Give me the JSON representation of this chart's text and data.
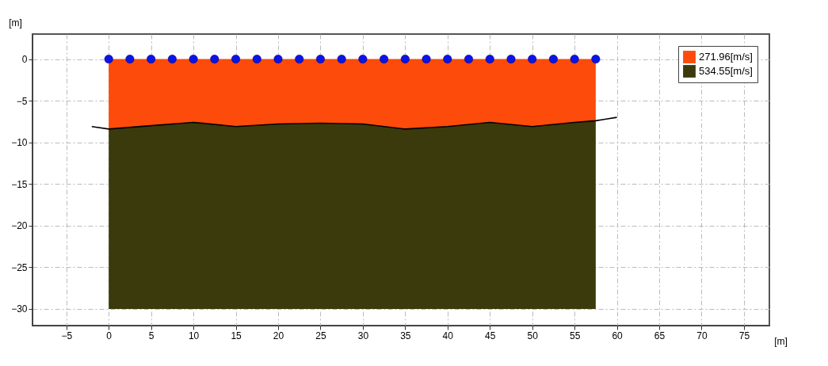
{
  "chart_data": {
    "type": "area",
    "stacked": true,
    "xlabel": "[m]",
    "ylabel": "[m]",
    "xlim": [
      -9,
      78
    ],
    "ylim": [
      -32,
      3
    ],
    "xticks": [
      -5,
      0,
      5,
      10,
      15,
      20,
      25,
      30,
      35,
      40,
      45,
      50,
      55,
      60,
      65,
      70,
      75
    ],
    "yticks": [
      -30,
      -25,
      -20,
      -15,
      -10,
      -5,
      0
    ],
    "grid": true,
    "legend": "top right",
    "series": [
      {
        "name": "271.96[m/s]",
        "color": "#fc4b0a",
        "x": [
          0,
          5,
          10,
          15,
          20,
          25,
          30,
          35,
          40,
          45,
          50,
          55,
          57.5
        ],
        "values": [
          -8.4,
          -8.0,
          -7.6,
          -8.1,
          -7.8,
          -7.7,
          -7.8,
          -8.4,
          -8.1,
          -7.6,
          -8.1,
          -7.6,
          -7.4
        ]
      },
      {
        "name": "534.55[m/s]",
        "color": "#3a3a0c",
        "x": [
          0,
          5,
          10,
          15,
          20,
          25,
          30,
          35,
          40,
          45,
          50,
          55,
          57.5
        ],
        "values": [
          -21.6,
          -22.0,
          -22.4,
          -21.9,
          -22.2,
          -22.3,
          -22.2,
          -21.6,
          -21.9,
          -22.4,
          -21.9,
          -22.4,
          -22.6
        ]
      },
      {
        "color": "#000000",
        "type": "line",
        "line_style": "solid",
        "x": [
          -2,
          0,
          5,
          10,
          15,
          20,
          25,
          30,
          35,
          40,
          45,
          50,
          55,
          57.5,
          60
        ],
        "values": [
          -8.1,
          -8.4,
          -8.0,
          -7.6,
          -8.1,
          -7.8,
          -7.7,
          -7.8,
          -8.4,
          -8.1,
          -7.6,
          -8.1,
          -7.6,
          -7.4,
          -7.0
        ]
      },
      {
        "color": "#0a14e6",
        "type": "scatter",
        "marker": "circle",
        "x": [
          0,
          2.5,
          5,
          7.5,
          10,
          12.5,
          15,
          17.5,
          20,
          22.5,
          25,
          27.5,
          30,
          32.5,
          35,
          37.5,
          40,
          42.5,
          45,
          47.5,
          50,
          52.5,
          55,
          57.5
        ],
        "values": [
          0,
          0,
          0,
          0,
          0,
          0,
          0,
          0,
          0,
          0,
          0,
          0,
          0,
          0,
          0,
          0,
          0,
          0,
          0,
          0,
          0,
          0,
          0,
          0
        ]
      }
    ]
  }
}
